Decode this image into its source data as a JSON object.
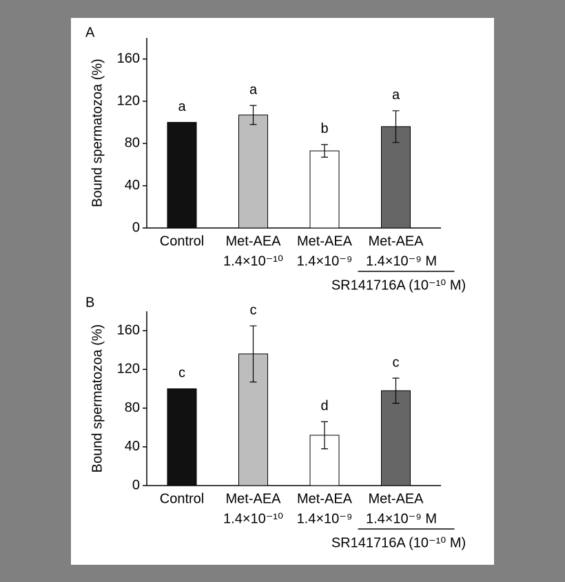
{
  "chart_data": [
    {
      "type": "bar",
      "panel_label": "A",
      "ylabel": "Bound spermatozoa (%)",
      "categories": [
        "Control",
        "Met-AEA",
        "Met-AEA",
        "Met-AEA"
      ],
      "concentrations": [
        null,
        "1.4×10⁻¹⁰",
        "1.4×10⁻⁹",
        "1.4×10⁻⁹ M"
      ],
      "bracket_label": "SR141716A (10⁻¹⁰ M)",
      "values": [
        100,
        107,
        73,
        96
      ],
      "errors": [
        null,
        9,
        6,
        15
      ],
      "annotations": [
        "a",
        "a",
        "b",
        "a"
      ],
      "colors": [
        "#111111",
        "#bdbdbd",
        "#ffffff",
        "#666666"
      ],
      "ylim": [
        0,
        180
      ],
      "yticks": [
        0,
        40,
        80,
        120,
        160
      ]
    },
    {
      "type": "bar",
      "panel_label": "B",
      "ylabel": "Bound spermatozoa (%)",
      "categories": [
        "Control",
        "Met-AEA",
        "Met-AEA",
        "Met-AEA"
      ],
      "concentrations": [
        null,
        "1.4×10⁻¹⁰",
        "1.4×10⁻⁹",
        "1.4×10⁻⁹ M"
      ],
      "bracket_label": "SR141716A (10⁻¹⁰ M)",
      "values": [
        100,
        136,
        52,
        98
      ],
      "errors": [
        null,
        29,
        14,
        13
      ],
      "annotations": [
        "c",
        "c",
        "d",
        "c"
      ],
      "colors": [
        "#111111",
        "#bdbdbd",
        "#ffffff",
        "#666666"
      ],
      "ylim": [
        0,
        180
      ],
      "yticks": [
        0,
        40,
        80,
        120,
        160
      ]
    }
  ]
}
